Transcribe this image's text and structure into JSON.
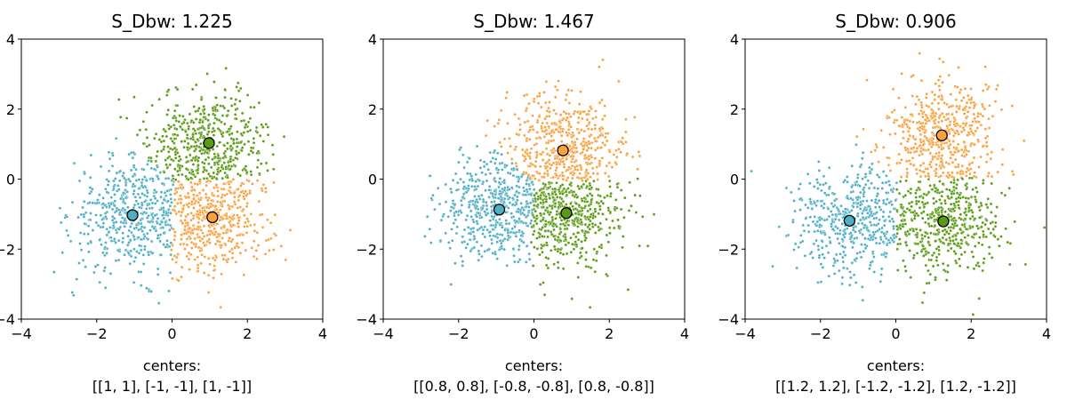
{
  "colors": {
    "blue": "#4eaec4",
    "orange": "#f9a13f",
    "green": "#5a9a14",
    "axis": "#000000",
    "background": "#ffffff"
  },
  "chart_data": [
    {
      "type": "scatter",
      "title": "S_Dbw: 1.225",
      "xlabel": "centers:\n[[1, 1], [-1, -1], [1, -1]]",
      "ylabel": "",
      "xlim": [
        -4,
        4
      ],
      "ylim": [
        -4,
        4
      ],
      "xticks": [
        "−4",
        "−2",
        "0",
        "2",
        "4"
      ],
      "yticks": [
        "−4",
        "−2",
        "0",
        "2",
        "4"
      ],
      "grid": false,
      "points_per_cluster": 500,
      "cluster_spread": 0.8,
      "series": [
        {
          "color": "blue",
          "center": [
            -1.05,
            -1.03
          ],
          "cluster_region": "left"
        },
        {
          "color": "green",
          "center": [
            0.98,
            1.03
          ],
          "cluster_region": "top"
        },
        {
          "color": "orange",
          "center": [
            1.07,
            -1.09
          ],
          "cluster_region": "bottom-right"
        }
      ]
    },
    {
      "type": "scatter",
      "title": "S_Dbw: 1.467",
      "xlabel": "centers:\n[[0.8, 0.8], [-0.8, -0.8], [0.8, -0.8]]",
      "ylabel": "",
      "xlim": [
        -4,
        4
      ],
      "ylim": [
        -4,
        4
      ],
      "xticks": [
        "−4",
        "−2",
        "0",
        "2",
        "4"
      ],
      "yticks": [
        "−4",
        "−2",
        "0",
        "2",
        "4"
      ],
      "grid": false,
      "points_per_cluster": 500,
      "cluster_spread": 0.8,
      "series": [
        {
          "color": "blue",
          "center": [
            -0.92,
            -0.87
          ],
          "cluster_region": "left"
        },
        {
          "color": "orange",
          "center": [
            0.77,
            0.82
          ],
          "cluster_region": "top"
        },
        {
          "color": "green",
          "center": [
            0.86,
            -0.97
          ],
          "cluster_region": "bottom-right"
        }
      ]
    },
    {
      "type": "scatter",
      "title": "S_Dbw: 0.906",
      "xlabel": "centers:\n[[1.2, 1.2], [-1.2, -1.2], [1.2, -1.2]]",
      "ylabel": "",
      "xlim": [
        -4,
        4
      ],
      "ylim": [
        -4,
        4
      ],
      "xticks": [
        "−4",
        "−2",
        "0",
        "2",
        "4"
      ],
      "yticks": [
        "−4",
        "−2",
        "0",
        "2",
        "4"
      ],
      "grid": false,
      "points_per_cluster": 500,
      "cluster_spread": 0.8,
      "series": [
        {
          "color": "blue",
          "center": [
            -1.23,
            -1.19
          ],
          "cluster_region": "left"
        },
        {
          "color": "orange",
          "center": [
            1.22,
            1.25
          ],
          "cluster_region": "top"
        },
        {
          "color": "green",
          "center": [
            1.26,
            -1.21
          ],
          "cluster_region": "bottom-right"
        }
      ]
    }
  ]
}
